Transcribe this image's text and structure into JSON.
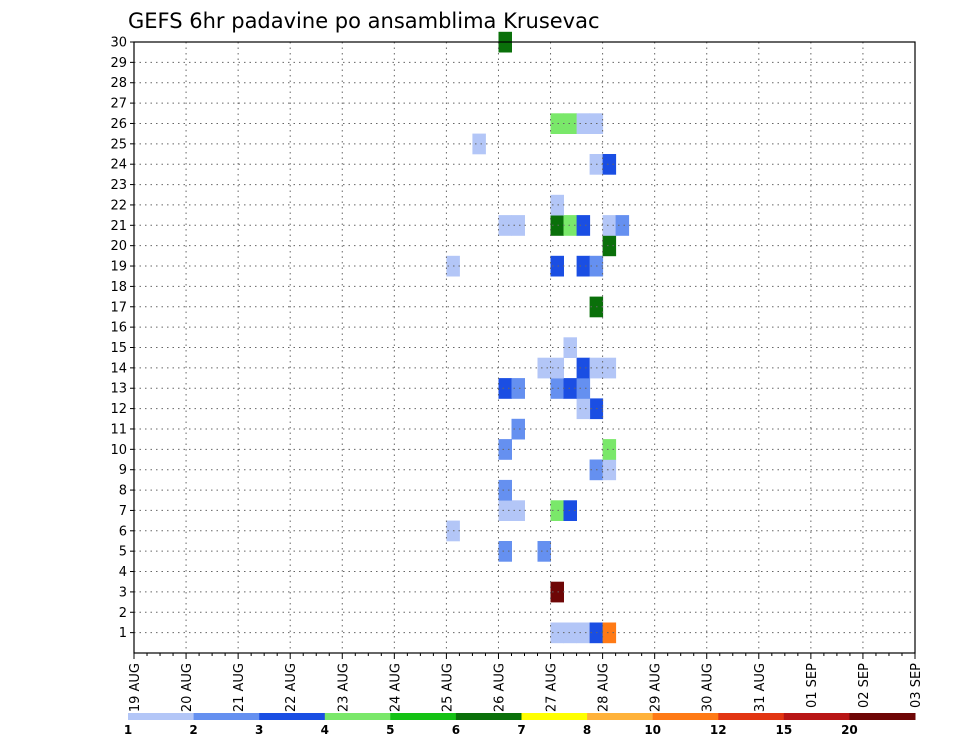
{
  "chart_data": {
    "type": "heatmap",
    "title": "GEFS 6hr padavine po ansamblima Krusevac",
    "xlabel": "",
    "ylabel": "",
    "y_ticks": [
      "1",
      "2",
      "3",
      "4",
      "5",
      "6",
      "7",
      "8",
      "9",
      "10",
      "11",
      "12",
      "13",
      "14",
      "15",
      "16",
      "17",
      "18",
      "19",
      "20",
      "21",
      "22",
      "23",
      "24",
      "25",
      "26",
      "27",
      "28",
      "29",
      "30"
    ],
    "ylim": [
      0,
      30
    ],
    "x_ticks": [
      "19 AUG",
      "20 AUG",
      "21 AUG",
      "22 AUG",
      "23 AUG",
      "24 AUG",
      "25 AUG",
      "26 AUG",
      "27 AUG",
      "28 AUG",
      "29 AUG",
      "30 AUG",
      "31 AUG",
      "01 SEP",
      "02 SEP",
      "03 SEP"
    ],
    "x_step": "6hr",
    "x_range": [
      "19 AUG 00Z",
      "03 SEP 00Z"
    ],
    "grid": true,
    "legend": {
      "placement": "bottom",
      "thresholds": [
        "1",
        "2",
        "3",
        "4",
        "5",
        "6",
        "7",
        "8",
        "10",
        "12",
        "15",
        "20"
      ],
      "colors": [
        "#b3c6f7",
        "#6590f0",
        "#1a4ee3",
        "#7ae86a",
        "#14c214",
        "#0a700a",
        "#ffff00",
        "#ffb23a",
        "#ff7a15",
        "#e23512",
        "#b81515",
        "#6e0606"
      ]
    },
    "cells": [
      {
        "date": "26 AUG",
        "hour": 0,
        "member": 30,
        "level": 6
      },
      {
        "date": "27 AUG",
        "hour": 0,
        "member": 1,
        "level": 1
      },
      {
        "date": "27 AUG",
        "hour": 6,
        "member": 1,
        "level": 1
      },
      {
        "date": "27 AUG",
        "hour": 12,
        "member": 1,
        "level": 1
      },
      {
        "date": "27 AUG",
        "hour": 18,
        "member": 1,
        "level": 3
      },
      {
        "date": "28 AUG",
        "hour": 0,
        "member": 1,
        "level": 9
      },
      {
        "date": "27 AUG",
        "hour": 0,
        "member": 3,
        "level": 12
      },
      {
        "date": "26 AUG",
        "hour": 0,
        "member": 5,
        "level": 2
      },
      {
        "date": "26 AUG",
        "hour": 18,
        "member": 5,
        "level": 2
      },
      {
        "date": "25 AUG",
        "hour": 0,
        "member": 6,
        "level": 1
      },
      {
        "date": "26 AUG",
        "hour": 0,
        "member": 7,
        "level": 1
      },
      {
        "date": "26 AUG",
        "hour": 6,
        "member": 7,
        "level": 1
      },
      {
        "date": "27 AUG",
        "hour": 0,
        "member": 7,
        "level": 4
      },
      {
        "date": "27 AUG",
        "hour": 6,
        "member": 7,
        "level": 3
      },
      {
        "date": "26 AUG",
        "hour": 0,
        "member": 8,
        "level": 2
      },
      {
        "date": "27 AUG",
        "hour": 18,
        "member": 9,
        "level": 2
      },
      {
        "date": "28 AUG",
        "hour": 0,
        "member": 9,
        "level": 1
      },
      {
        "date": "26 AUG",
        "hour": 0,
        "member": 10,
        "level": 2
      },
      {
        "date": "28 AUG",
        "hour": 0,
        "member": 10,
        "level": 4
      },
      {
        "date": "26 AUG",
        "hour": 6,
        "member": 11,
        "level": 2
      },
      {
        "date": "27 AUG",
        "hour": 18,
        "member": 12,
        "level": 3
      },
      {
        "date": "27 AUG",
        "hour": 12,
        "member": 12,
        "level": 1
      },
      {
        "date": "26 AUG",
        "hour": 0,
        "member": 13,
        "level": 3
      },
      {
        "date": "26 AUG",
        "hour": 6,
        "member": 13,
        "level": 2
      },
      {
        "date": "27 AUG",
        "hour": 0,
        "member": 13,
        "level": 2
      },
      {
        "date": "27 AUG",
        "hour": 6,
        "member": 13,
        "level": 3
      },
      {
        "date": "27 AUG",
        "hour": 12,
        "member": 13,
        "level": 2
      },
      {
        "date": "26 AUG",
        "hour": 18,
        "member": 14,
        "level": 1
      },
      {
        "date": "27 AUG",
        "hour": 0,
        "member": 14,
        "level": 1
      },
      {
        "date": "27 AUG",
        "hour": 12,
        "member": 14,
        "level": 3
      },
      {
        "date": "27 AUG",
        "hour": 18,
        "member": 14,
        "level": 1
      },
      {
        "date": "28 AUG",
        "hour": 0,
        "member": 14,
        "level": 1
      },
      {
        "date": "27 AUG",
        "hour": 6,
        "member": 15,
        "level": 1
      },
      {
        "date": "27 AUG",
        "hour": 18,
        "member": 17,
        "level": 6
      },
      {
        "date": "25 AUG",
        "hour": 0,
        "member": 19,
        "level": 1
      },
      {
        "date": "27 AUG",
        "hour": 0,
        "member": 19,
        "level": 3
      },
      {
        "date": "27 AUG",
        "hour": 12,
        "member": 19,
        "level": 3
      },
      {
        "date": "27 AUG",
        "hour": 18,
        "member": 19,
        "level": 2
      },
      {
        "date": "28 AUG",
        "hour": 0,
        "member": 20,
        "level": 6
      },
      {
        "date": "26 AUG",
        "hour": 0,
        "member": 21,
        "level": 1
      },
      {
        "date": "26 AUG",
        "hour": 6,
        "member": 21,
        "level": 1
      },
      {
        "date": "27 AUG",
        "hour": 0,
        "member": 21,
        "level": 6
      },
      {
        "date": "27 AUG",
        "hour": 6,
        "member": 21,
        "level": 4
      },
      {
        "date": "27 AUG",
        "hour": 12,
        "member": 21,
        "level": 3
      },
      {
        "date": "28 AUG",
        "hour": 0,
        "member": 21,
        "level": 1
      },
      {
        "date": "28 AUG",
        "hour": 6,
        "member": 21,
        "level": 2
      },
      {
        "date": "27 AUG",
        "hour": 0,
        "member": 22,
        "level": 1
      },
      {
        "date": "25 AUG",
        "hour": 12,
        "member": 25,
        "level": 1
      },
      {
        "date": "27 AUG",
        "hour": 0,
        "member": 26,
        "level": 4
      },
      {
        "date": "27 AUG",
        "hour": 6,
        "member": 26,
        "level": 4
      },
      {
        "date": "27 AUG",
        "hour": 12,
        "member": 26,
        "level": 1
      },
      {
        "date": "27 AUG",
        "hour": 18,
        "member": 26,
        "level": 1
      },
      {
        "date": "27 AUG",
        "hour": 18,
        "member": 24,
        "level": 1
      },
      {
        "date": "28 AUG",
        "hour": 0,
        "member": 24,
        "level": 3
      }
    ]
  }
}
